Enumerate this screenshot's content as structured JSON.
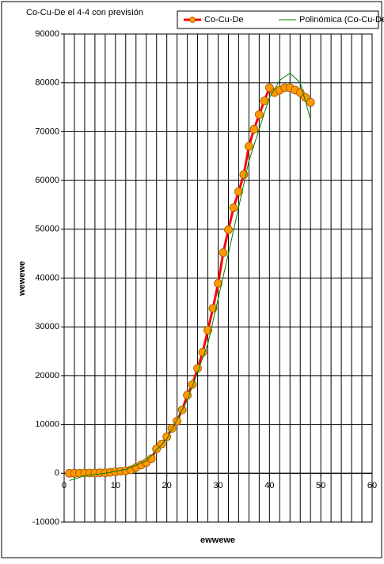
{
  "chart_data": {
    "type": "line",
    "title": "Co-Cu-De el 4-4 con previsión",
    "x_label": "ewwewe",
    "y_label": "wewewe",
    "xlim": [
      0,
      60
    ],
    "xticks": [
      0,
      10,
      20,
      30,
      40,
      50,
      60
    ],
    "xgrid": [
      0,
      2,
      4,
      6,
      8,
      10,
      12,
      14,
      16,
      18,
      20,
      22,
      24,
      26,
      28,
      30,
      32,
      34,
      36,
      38,
      40,
      42,
      44,
      46,
      48,
      50,
      52,
      54,
      56,
      58,
      60
    ],
    "ylim": [
      -10000,
      90000
    ],
    "yticks": [
      -10000,
      0,
      10000,
      20000,
      30000,
      40000,
      50000,
      60000,
      70000,
      80000,
      90000
    ],
    "grid": true,
    "legend": "top",
    "series": [
      {
        "name": "Co-Cu-De",
        "color": "#ff0000",
        "marker_color": "#ff9900",
        "x": [
          1,
          2,
          3,
          4,
          5,
          6,
          7,
          8,
          9,
          10,
          11,
          12,
          13,
          14,
          15,
          16,
          17,
          18,
          19,
          20,
          21,
          22,
          23,
          24,
          25,
          26,
          27,
          28,
          29,
          30,
          31,
          32,
          33,
          34,
          35,
          36,
          37,
          38,
          39,
          40,
          41,
          42,
          43,
          44,
          45,
          46,
          47,
          48
        ],
        "values": [
          0,
          0,
          0,
          50,
          50,
          50,
          100,
          100,
          200,
          300,
          400,
          500,
          700,
          1200,
          1700,
          2200,
          3000,
          5000,
          6000,
          7500,
          9200,
          10700,
          13000,
          16000,
          18200,
          21500,
          24800,
          29300,
          33800,
          38900,
          45200,
          49900,
          54400,
          57700,
          61200,
          67000,
          70500,
          73500,
          76300,
          79000,
          78000,
          78500,
          79000,
          79000,
          78500,
          78000,
          77000,
          76000
        ]
      },
      {
        "name": "Polinómica (Co-Cu-De)",
        "color": "#008000",
        "x": [
          1,
          4,
          8,
          12,
          16,
          20,
          24,
          28,
          32,
          36,
          40,
          42,
          44,
          46,
          48
        ],
        "values": [
          -1500,
          -500,
          0,
          800,
          2500,
          7000,
          15000,
          26500,
          45000,
          64000,
          77000,
          80500,
          82000,
          80000,
          72500
        ]
      }
    ]
  }
}
